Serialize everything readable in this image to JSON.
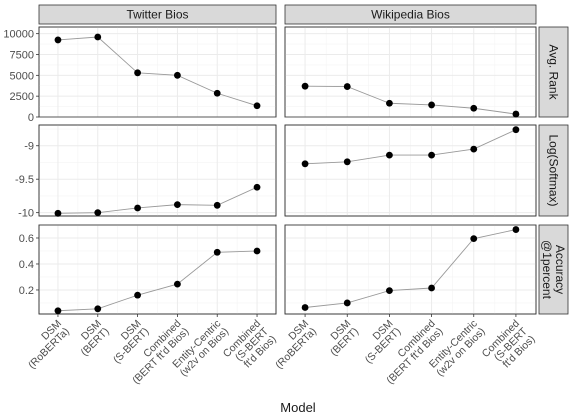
{
  "chart_data": {
    "type": "line",
    "xlabel": "Model",
    "columns": [
      "Twitter Bios",
      "Wikipedia Bios"
    ],
    "rows": [
      "Avg. Rank",
      "Log(Softmax)",
      "Accuracy @1percent"
    ],
    "categories": [
      [
        "DSM",
        "(RoBERTa)"
      ],
      [
        "DSM",
        "(BERT)"
      ],
      [
        "DSM",
        "(S-BERT)"
      ],
      [
        "Combined",
        "(BERT ft'd Bios)"
      ],
      [
        "Entity-Centric",
        "(w2v on Bios)"
      ],
      [
        "Combined",
        "(S-BERT",
        "ft'd Bios)"
      ]
    ],
    "facets": [
      {
        "row": "Avg. Rank",
        "ylim": [
          0,
          10800
        ],
        "yticks": [
          0,
          2500,
          5000,
          7500,
          10000
        ],
        "panels": [
          {
            "column": "Twitter Bios",
            "values": [
              9250,
              9600,
              5300,
              5000,
              2850,
              1350
            ]
          },
          {
            "column": "Wikipedia Bios",
            "values": [
              3700,
              3650,
              1650,
              1450,
              1050,
              350
            ]
          }
        ]
      },
      {
        "row": "Log(Softmax)",
        "ylim": [
          -10.05,
          -8.69
        ],
        "yticks": [
          -10.0,
          -9.5,
          -9.0
        ],
        "panels": [
          {
            "column": "Twitter Bios",
            "values": [
              -10.01,
              -10.0,
              -9.93,
              -9.88,
              -9.89,
              -9.62
            ]
          },
          {
            "column": "Wikipedia Bios",
            "values": [
              -9.27,
              -9.24,
              -9.14,
              -9.14,
              -9.05,
              -8.76
            ]
          }
        ]
      },
      {
        "row": "Accuracy @1percent",
        "ylim": [
          0.015,
          0.7
        ],
        "yticks": [
          0.2,
          0.4,
          0.6
        ],
        "panels": [
          {
            "column": "Twitter Bios",
            "values": [
              0.04,
              0.055,
              0.16,
              0.245,
              0.49,
              0.5
            ]
          },
          {
            "column": "Wikipedia Bios",
            "values": [
              0.065,
              0.1,
              0.195,
              0.215,
              0.595,
              0.665
            ]
          }
        ]
      }
    ],
    "grid": true,
    "legend": "none"
  }
}
